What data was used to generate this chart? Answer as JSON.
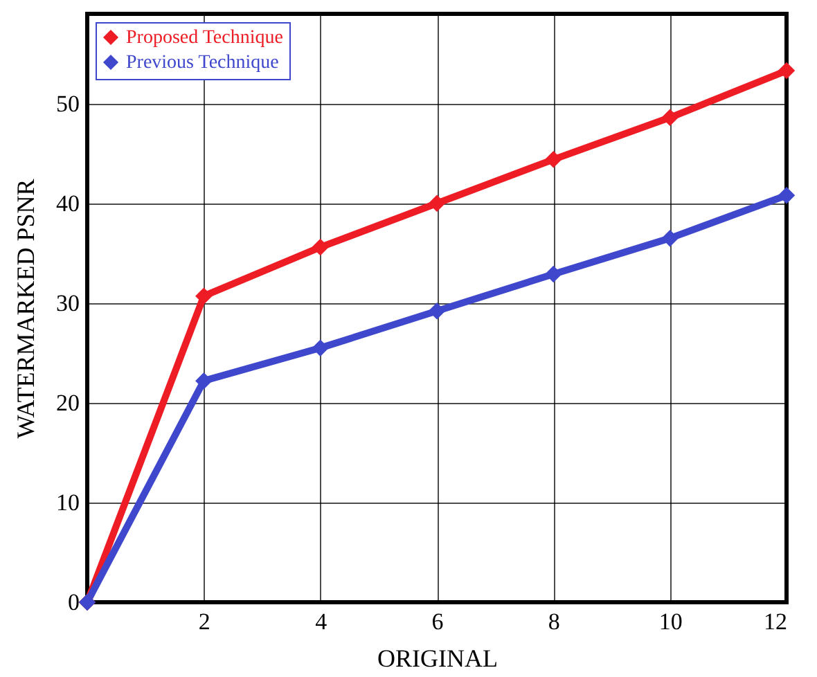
{
  "chart_data": {
    "type": "line",
    "xlabel": "ORIGINAL",
    "ylabel": "WATERMARKED PSNR",
    "x": [
      0,
      2,
      4,
      6,
      8,
      10,
      12
    ],
    "series": [
      {
        "name": "Proposed Technique",
        "color": "#ee1c25",
        "values": [
          0,
          30.7,
          35.6,
          40,
          44.4,
          48.6,
          53.3
        ]
      },
      {
        "name": "Previous Technique",
        "color": "#3f48cc",
        "values": [
          0,
          22.2,
          25.5,
          29.2,
          32.9,
          36.5,
          40.8
        ]
      }
    ],
    "xlim": [
      0,
      12
    ],
    "xticks": [
      2,
      4,
      6,
      8,
      10,
      12
    ],
    "ylim": [
      0,
      59
    ],
    "yticks": [
      0,
      10,
      20,
      30,
      40,
      50
    ],
    "grid": true,
    "legend": "top left",
    "marker": "diamond",
    "line_style": "solid"
  }
}
